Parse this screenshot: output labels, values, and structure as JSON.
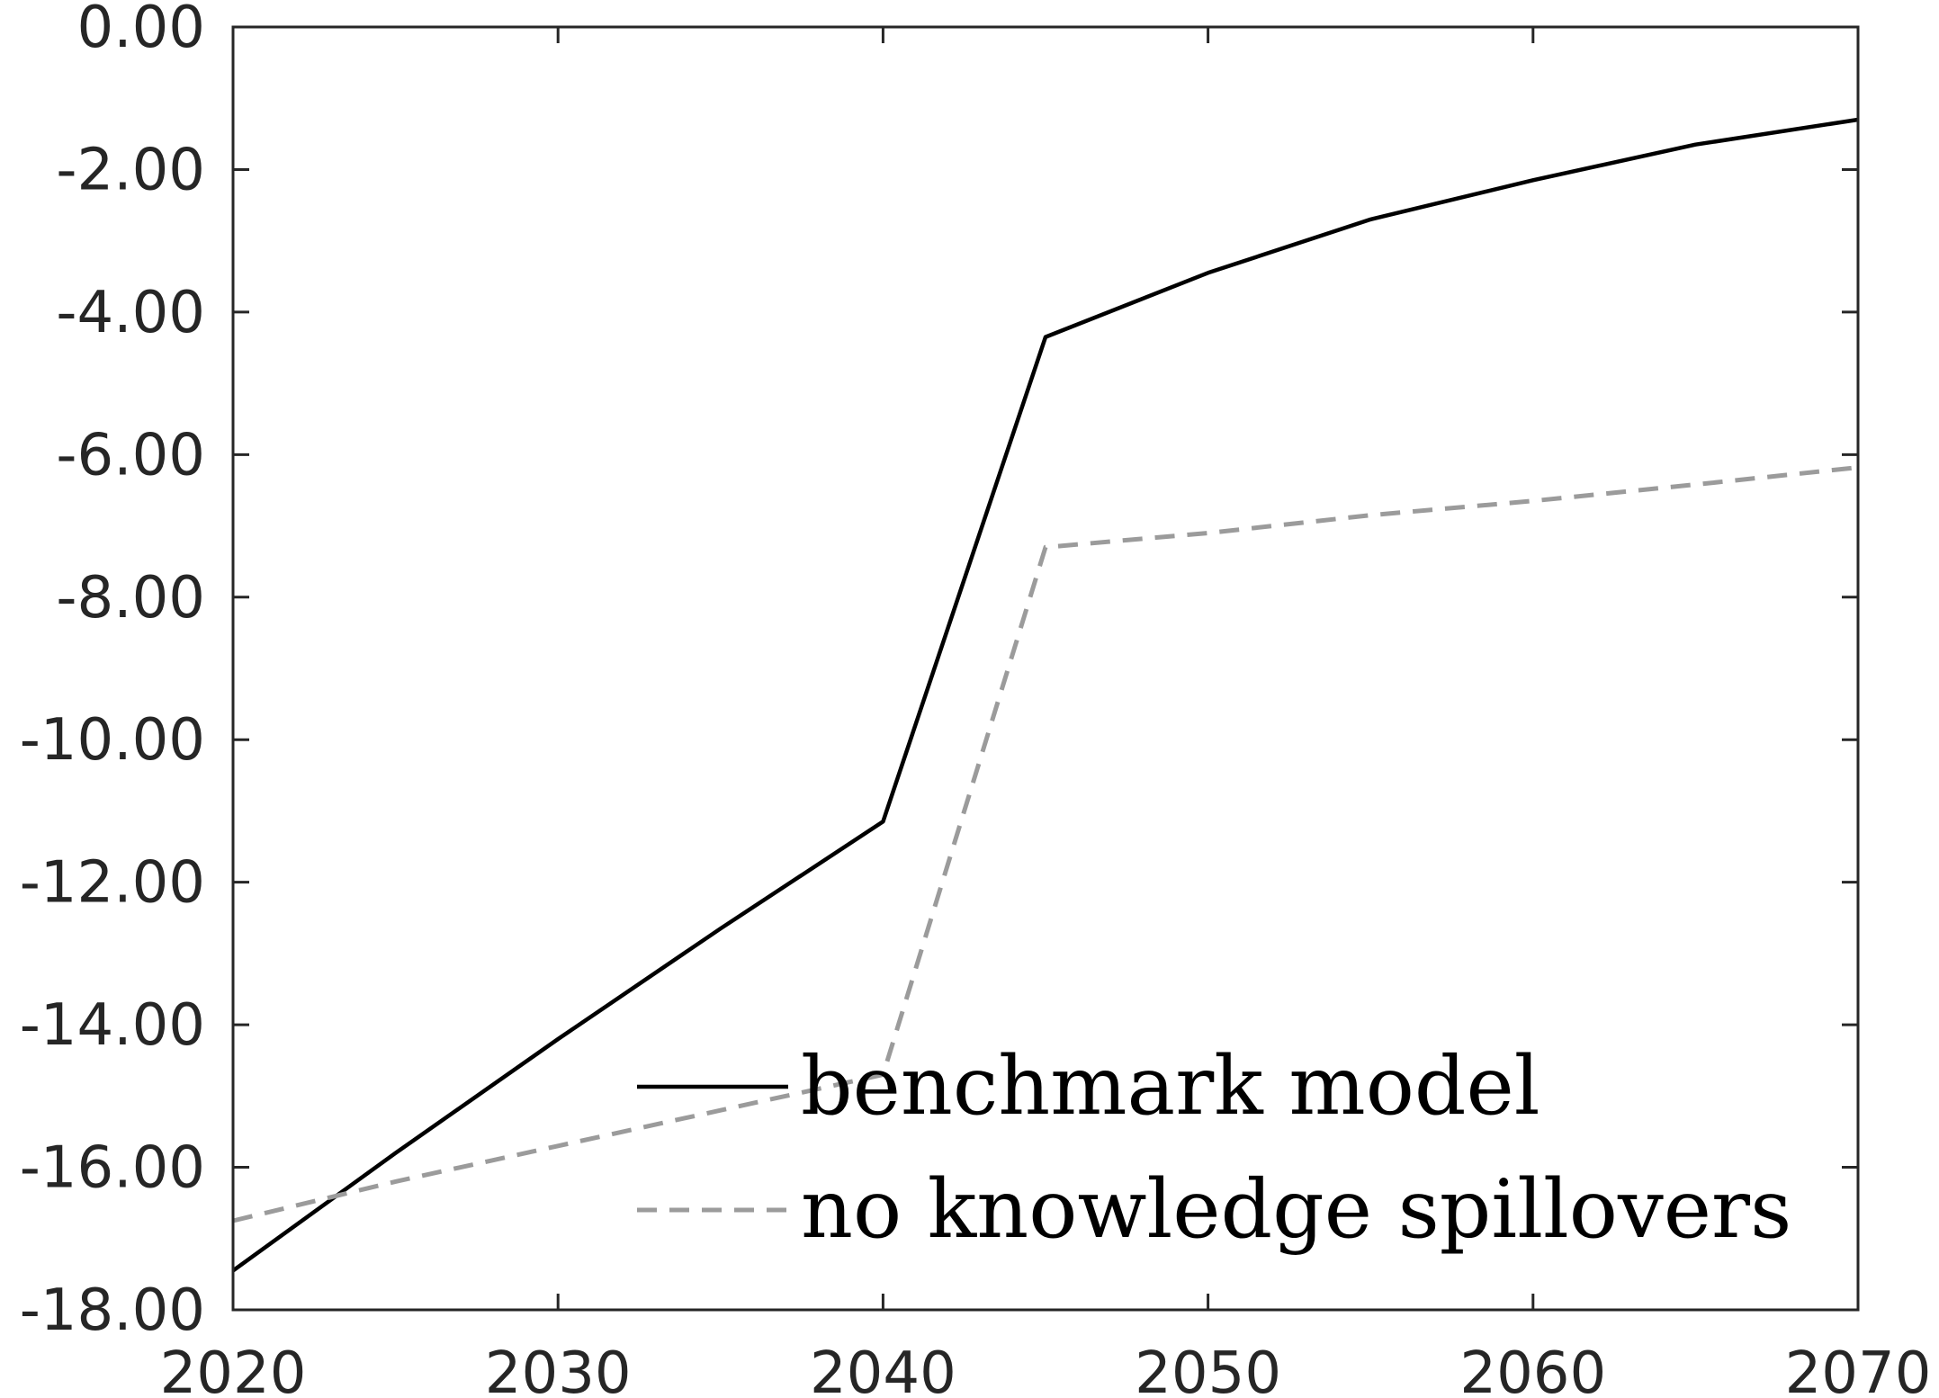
{
  "chart_data": {
    "type": "line",
    "title": "",
    "xlabel": "",
    "ylabel": "",
    "xlim": [
      2020,
      2070
    ],
    "ylim": [
      -18,
      0
    ],
    "x_ticks": [
      2020,
      2030,
      2040,
      2050,
      2060,
      2070
    ],
    "x_tick_labels": [
      "2020",
      "2030",
      "2040",
      "2050",
      "2060",
      "2070"
    ],
    "y_ticks": [
      0,
      -2,
      -4,
      -6,
      -8,
      -10,
      -12,
      -14,
      -16,
      -18
    ],
    "y_tick_labels": [
      "0.00",
      "-2.00",
      "-4.00",
      "-6.00",
      "-8.00",
      "-10.00",
      "-12.00",
      "-14.00",
      "-16.00",
      "-18.00"
    ],
    "grid": false,
    "legend_position": "bottom-right",
    "series": [
      {
        "name": "benchmark model",
        "color": "#000000",
        "style": "solid",
        "x": [
          2020,
          2025,
          2030,
          2035,
          2040,
          2045,
          2050,
          2055,
          2060,
          2065,
          2070
        ],
        "y": [
          -17.45,
          -15.8,
          -14.2,
          -12.65,
          -11.15,
          -4.35,
          -3.45,
          -2.7,
          -2.15,
          -1.65,
          -1.3
        ]
      },
      {
        "name": "no knowledge spillovers",
        "color": "#9b9b9b",
        "style": "dashed",
        "x": [
          2020,
          2025,
          2030,
          2035,
          2040,
          2045,
          2050,
          2055,
          2060,
          2065,
          2070
        ],
        "y": [
          -16.75,
          -16.2,
          -15.7,
          -15.2,
          -14.7,
          -7.3,
          -7.1,
          -6.85,
          -6.65,
          -6.42,
          -6.18
        ]
      }
    ]
  }
}
